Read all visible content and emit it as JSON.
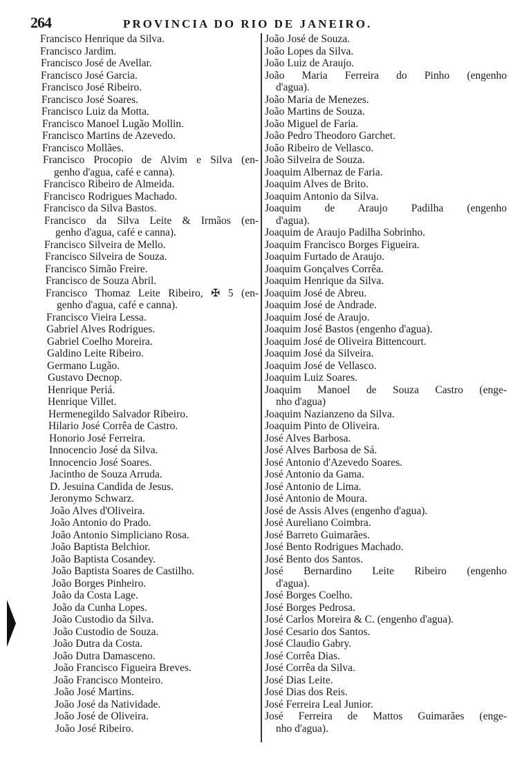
{
  "header": {
    "page_number": "264",
    "running_title": "PROVINCIA DO RIO DE JANEIRO."
  },
  "columns": {
    "left": [
      {
        "lines": [
          "Francisco Henrique da Silva."
        ]
      },
      {
        "lines": [
          "Francisco Jardim."
        ]
      },
      {
        "lines": [
          "Francisco José de Avellar."
        ]
      },
      {
        "lines": [
          "Francisco José Garcia."
        ]
      },
      {
        "lines": [
          "Francisco José Ribeiro."
        ]
      },
      {
        "lines": [
          "Francisco José Soares."
        ]
      },
      {
        "lines": [
          "Francisco Luiz da Motta."
        ]
      },
      {
        "lines": [
          "Francisco Manoel Lugão Mollin."
        ]
      },
      {
        "lines": [
          "Francisco Martins de Azevedo."
        ]
      },
      {
        "lines": [
          "Francisco Mollães."
        ]
      },
      {
        "lines": [
          "Francisco Procopio de Alvim e Silva (en-",
          "genho d'agua, café e canna)."
        ]
      },
      {
        "lines": [
          "Francisco Ribeiro de Almeida."
        ]
      },
      {
        "lines": [
          "Francisco Rodrigues Machado."
        ]
      },
      {
        "lines": [
          "Francisco da Silva Bastos."
        ]
      },
      {
        "lines": [
          "Francisco da Silva Leite & Irmãos (en-",
          "genho d'agua, café e canna)."
        ]
      },
      {
        "lines": [
          "Francisco Silveira de Mello."
        ]
      },
      {
        "lines": [
          "Francisco Silveira de Souza."
        ]
      },
      {
        "lines": [
          "Francisco Simão Freire."
        ]
      },
      {
        "lines": [
          "Francisco de Souza Abril."
        ]
      },
      {
        "lines": [
          "Francisco Thomaz Leite Ribeiro, ✠ 5 (en-",
          "genho d'agua, café e canna)."
        ]
      },
      {
        "lines": [
          "Francisco Vieira Lessa."
        ]
      },
      {
        "lines": [
          "Gabriel Alves Rodrigues."
        ]
      },
      {
        "lines": [
          "Gabriel Coelho Moreira."
        ]
      },
      {
        "lines": [
          "Galdino Leite Ribeiro."
        ]
      },
      {
        "lines": [
          "Germano Lugão."
        ]
      },
      {
        "lines": [
          "Gustavo Decnop."
        ]
      },
      {
        "lines": [
          "Henrique Periá."
        ]
      },
      {
        "lines": [
          "Henrique Villet."
        ]
      },
      {
        "lines": [
          "Hermenegildo Salvador Ribeiro."
        ]
      },
      {
        "lines": [
          "Hilario José Corrêa de Castro."
        ]
      },
      {
        "lines": [
          "Honorio José Ferreira."
        ]
      },
      {
        "lines": [
          "Innocencio José da Silva."
        ]
      },
      {
        "lines": [
          "Innocencio José Soares."
        ]
      },
      {
        "lines": [
          "Jacintho de Souza Arruda."
        ]
      },
      {
        "lines": [
          "D. Jesuina Candida de Jesus."
        ]
      },
      {
        "lines": [
          "Jeronymo Schwarz."
        ]
      },
      {
        "lines": [
          "João Alves d'Oliveira."
        ]
      },
      {
        "lines": [
          "João Antonio do Prado."
        ]
      },
      {
        "lines": [
          "João Antonio Simpliciano Rosa."
        ]
      },
      {
        "lines": [
          "João Baptista Belchior."
        ]
      },
      {
        "lines": [
          "João Baptista Cosandey."
        ]
      },
      {
        "lines": [
          "João Baptista Soares de Castilho."
        ]
      },
      {
        "lines": [
          "João Borges Pinheiro."
        ]
      },
      {
        "lines": [
          "João da Costa Lage."
        ]
      },
      {
        "lines": [
          "João da Cunha Lopes."
        ]
      },
      {
        "lines": [
          "João Custodio da Silva."
        ]
      },
      {
        "lines": [
          "João Custodio de Souza."
        ]
      },
      {
        "lines": [
          "João Dutra da Costa."
        ]
      },
      {
        "lines": [
          "João Dutra Damasceno."
        ]
      },
      {
        "lines": [
          "João Francisco Figueira Breves."
        ]
      },
      {
        "lines": [
          "João Francisco Monteiro."
        ]
      },
      {
        "lines": [
          "João José Martins."
        ]
      },
      {
        "lines": [
          "João José da Natividade."
        ]
      },
      {
        "lines": [
          "João José de Oliveira."
        ]
      },
      {
        "lines": [
          "João José Ribeiro."
        ]
      }
    ],
    "right": [
      {
        "lines": [
          "João José de Souza."
        ]
      },
      {
        "lines": [
          "João Lopes da Silva."
        ]
      },
      {
        "lines": [
          "João Luiz de Araujo."
        ]
      },
      {
        "lines": [
          "João Maria Ferreira do Pinho (engenho",
          "d'agua)."
        ]
      },
      {
        "lines": [
          "João Maria de Menezes."
        ]
      },
      {
        "lines": [
          "João Martins de Souza."
        ]
      },
      {
        "lines": [
          "João Miguel de Faria."
        ]
      },
      {
        "lines": [
          "João Pedro Theodoro Garchet."
        ]
      },
      {
        "lines": [
          "João Ribeiro de Vellasco."
        ]
      },
      {
        "lines": [
          "João Silveira de Souza."
        ]
      },
      {
        "lines": [
          "Joaquim Albernaz de Faria."
        ]
      },
      {
        "lines": [
          "Joaquim Alves de Brito."
        ]
      },
      {
        "lines": [
          "Joaquim Antonio da Silva."
        ]
      },
      {
        "lines": [
          "Joaquim de Araujo Padilha (engenho",
          "d'agua)."
        ]
      },
      {
        "lines": [
          "Joaquim de Araujo Padilha Sobrinho."
        ]
      },
      {
        "lines": [
          "Joaquim Francisco Borges Figueira."
        ]
      },
      {
        "lines": [
          "Joaquim Furtado de Araujo."
        ]
      },
      {
        "lines": [
          "Joaquim Gonçalves Corrêa."
        ]
      },
      {
        "lines": [
          "Joaquim Henrique da Silva."
        ]
      },
      {
        "lines": [
          "Joaquim José de Abreu."
        ]
      },
      {
        "lines": [
          "Joaquim José de Andrade."
        ]
      },
      {
        "lines": [
          "Joaquim José de Araujo."
        ]
      },
      {
        "lines": [
          "Joaquim José Bastos (engenho d'agua)."
        ]
      },
      {
        "lines": [
          "Joaquim José de Oliveira Bittencourt."
        ]
      },
      {
        "lines": [
          "Joaquim José da Silveira."
        ]
      },
      {
        "lines": [
          "Joaquim José de Vellasco."
        ]
      },
      {
        "lines": [
          "Joaquim Luiz Soares."
        ]
      },
      {
        "lines": [
          "Joaquim Manoel de Souza Castro (enge-",
          "nho d'agua)"
        ]
      },
      {
        "lines": [
          "Joaquim Nazianzeno da Silva."
        ]
      },
      {
        "lines": [
          "Joaquim Pinto de Oliveira."
        ]
      },
      {
        "lines": [
          "José Alves Barbosa."
        ]
      },
      {
        "lines": [
          "José Alves Barbosa de Sá."
        ]
      },
      {
        "lines": [
          "José Antonio d'Azevedo Soares."
        ]
      },
      {
        "lines": [
          "José Antonio da Gama."
        ]
      },
      {
        "lines": [
          "José Antonio de Lima."
        ]
      },
      {
        "lines": [
          "José Antonio de Moura."
        ]
      },
      {
        "lines": [
          "José de Assis Alves (engenho d'agua)."
        ]
      },
      {
        "lines": [
          "José Aureliano Coimbra."
        ]
      },
      {
        "lines": [
          "José Barreto Guimarães."
        ]
      },
      {
        "lines": [
          "José Bento Rodrigues Machado."
        ]
      },
      {
        "lines": [
          "José Bento dos Santos."
        ]
      },
      {
        "lines": [
          "José Bernardino Leite Ribeiro (engenho",
          "d'agua)."
        ]
      },
      {
        "lines": [
          "José Borges Coelho."
        ]
      },
      {
        "lines": [
          "José Borges Pedrosa."
        ]
      },
      {
        "lines": [
          "José Carlos Moreira & C. (engenho d'agua)."
        ]
      },
      {
        "lines": [
          "José Cesario dos Santos."
        ]
      },
      {
        "lines": [
          "José Claudio Gabry."
        ]
      },
      {
        "lines": [
          "José Corrêa Dias."
        ]
      },
      {
        "lines": [
          "José Corrêa da Silva."
        ]
      },
      {
        "lines": [
          "José Dias Leite."
        ]
      },
      {
        "lines": [
          "José Dias dos Reis."
        ]
      },
      {
        "lines": [
          "José Ferreira Leal Junior."
        ]
      },
      {
        "lines": [
          "José Ferreira de Mattos Guimarães (enge-",
          "nho d'agua)."
        ]
      }
    ]
  }
}
